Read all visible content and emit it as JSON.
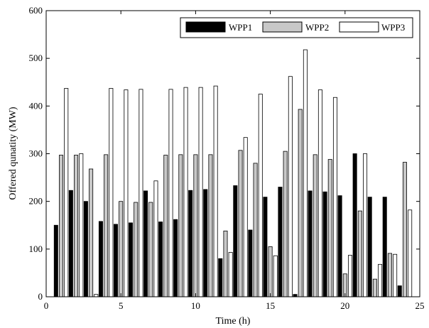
{
  "chart_data": {
    "type": "bar",
    "title": "",
    "xlabel": "Time (h)",
    "ylabel": "Offered qunatity (MW)",
    "xlim": [
      0,
      25
    ],
    "ylim": [
      0,
      600
    ],
    "xticks": [
      "0",
      "5",
      "10",
      "15",
      "20",
      "25"
    ],
    "yticks": [
      "0",
      "100",
      "200",
      "300",
      "400",
      "500",
      "600"
    ],
    "grid": false,
    "legend_position": "top-right",
    "x": [
      1,
      2,
      3,
      4,
      5,
      6,
      7,
      8,
      9,
      10,
      11,
      12,
      13,
      14,
      15,
      16,
      17,
      18,
      19,
      20,
      21,
      22,
      23,
      24
    ],
    "series": [
      {
        "name": "WPP1",
        "color": "#000000",
        "values": [
          150,
          223,
          200,
          158,
          152,
          155,
          222,
          157,
          162,
          223,
          225,
          80,
          233,
          140,
          209,
          230,
          5,
          222,
          220,
          212,
          300,
          209,
          209,
          23
        ]
      },
      {
        "name": "WPP2",
        "color": "#c8c8c8",
        "values": [
          297,
          297,
          268,
          298,
          200,
          198,
          198,
          297,
          298,
          298,
          298,
          138,
          307,
          280,
          105,
          305,
          393,
          298,
          288,
          48,
          180,
          37,
          91,
          282
        ]
      },
      {
        "name": "WPP3",
        "color": "#ffffff",
        "values": [
          437,
          300,
          5,
          437,
          434,
          435,
          243,
          435,
          439,
          439,
          442,
          93,
          334,
          425,
          86,
          462,
          518,
          434,
          418,
          87,
          300,
          68,
          89,
          182
        ]
      }
    ]
  }
}
